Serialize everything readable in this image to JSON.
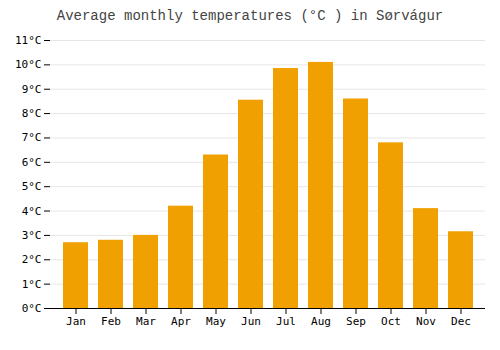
{
  "chart_data": {
    "type": "bar",
    "title": "Average monthly temperatures (°C ) in Sørvágur",
    "categories": [
      "Jan",
      "Feb",
      "Mar",
      "Apr",
      "May",
      "Jun",
      "Jul",
      "Aug",
      "Sep",
      "Oct",
      "Nov",
      "Dec"
    ],
    "values": [
      2.7,
      2.8,
      3.0,
      4.2,
      6.3,
      8.55,
      9.85,
      10.1,
      8.6,
      6.8,
      4.1,
      3.15
    ],
    "color": "#F0A000",
    "ylim": [
      0,
      11
    ],
    "yticks": [
      {
        "value": 0,
        "label": "0°C"
      },
      {
        "value": 1,
        "label": "1°C"
      },
      {
        "value": 2,
        "label": "2°C"
      },
      {
        "value": 3,
        "label": "3°C"
      },
      {
        "value": 4,
        "label": "4°C"
      },
      {
        "value": 5,
        "label": "5°C"
      },
      {
        "value": 6,
        "label": "6°C"
      },
      {
        "value": 7,
        "label": "7°C"
      },
      {
        "value": 8,
        "label": "8°C"
      },
      {
        "value": 9,
        "label": "9°C"
      },
      {
        "value": 10,
        "label": "10°C"
      },
      {
        "value": 11,
        "label": "11°C"
      }
    ],
    "grid": true
  }
}
